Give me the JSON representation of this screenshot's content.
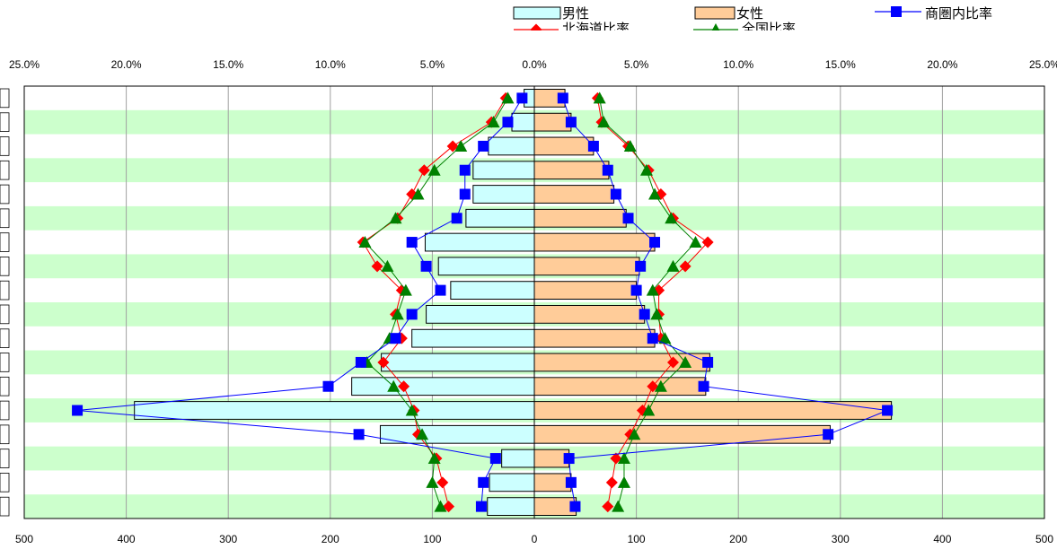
{
  "chart_data": {
    "type": "bar",
    "subtype": "population-pyramid",
    "top_axis": {
      "unit": "percent",
      "range": [
        -25,
        25
      ],
      "tick_labels": [
        "25.0%",
        "20.0%",
        "15.0%",
        "10.0%",
        "5.0%",
        "0.0%",
        "5.0%",
        "10.0%",
        "15.0%",
        "20.0%",
        "25.0%"
      ]
    },
    "bottom_axis": {
      "unit": "persons",
      "range": [
        -500,
        500
      ],
      "tick_labels": [
        "500",
        "400",
        "300",
        "200",
        "100",
        "0",
        "100",
        "200",
        "300",
        "400",
        "500"
      ]
    },
    "grid": true,
    "band_color": "#ccffcc",
    "age_groups": 18,
    "legend": [
      {
        "key": "male",
        "label": "男性",
        "kind": "bar",
        "color": "#ccffff"
      },
      {
        "key": "female",
        "label": "女性",
        "kind": "bar",
        "color": "#ffcc99"
      },
      {
        "key": "area_ratio",
        "label": "商圏内比率",
        "kind": "line",
        "color": "#0000ff",
        "marker": "square"
      },
      {
        "key": "hokkaido_ratio",
        "label": "北海道比率",
        "kind": "line",
        "color": "#ff0000",
        "marker": "diamond"
      },
      {
        "key": "national_ratio",
        "label": "全国比率",
        "kind": "line",
        "color": "#008000",
        "marker": "triangle"
      }
    ],
    "series": [
      {
        "name": "男性",
        "unit": "persons",
        "values": [
          10,
          22,
          45,
          60,
          60,
          67,
          107,
          94,
          82,
          106,
          120,
          150,
          179,
          392,
          151,
          32,
          44,
          46
        ]
      },
      {
        "name": "女性",
        "unit": "persons",
        "values": [
          30,
          36,
          58,
          73,
          78,
          90,
          118,
          103,
          100,
          108,
          118,
          172,
          168,
          350,
          290,
          34,
          36,
          41
        ]
      },
      {
        "name": "商圏内比率",
        "unit": "percent",
        "male": [
          0.6,
          1.3,
          2.5,
          3.4,
          3.4,
          3.8,
          6.0,
          5.3,
          4.6,
          6.0,
          6.8,
          8.5,
          10.1,
          22.4,
          8.6,
          1.9,
          2.5,
          2.6
        ],
        "female": [
          1.4,
          1.8,
          2.9,
          3.6,
          4.0,
          4.6,
          5.9,
          5.2,
          5.0,
          5.4,
          5.8,
          8.5,
          8.3,
          17.3,
          14.4,
          1.7,
          1.8,
          2.0
        ]
      },
      {
        "name": "北海道比率",
        "unit": "percent",
        "male": [
          1.4,
          2.1,
          4.0,
          5.4,
          6.0,
          6.7,
          8.4,
          7.7,
          6.5,
          6.8,
          6.5,
          7.4,
          6.4,
          5.9,
          5.7,
          4.8,
          4.5,
          4.2
        ],
        "female": [
          3.1,
          3.3,
          4.6,
          5.6,
          6.2,
          6.8,
          8.5,
          7.4,
          6.1,
          6.1,
          6.2,
          6.8,
          5.8,
          5.3,
          4.7,
          4.0,
          3.8,
          3.6
        ]
      },
      {
        "name": "全国比率",
        "unit": "percent",
        "male": [
          1.3,
          2.0,
          3.6,
          4.9,
          5.7,
          6.8,
          8.3,
          7.2,
          6.3,
          6.7,
          7.1,
          8.2,
          6.9,
          6.0,
          5.5,
          4.9,
          5.0,
          4.6
        ],
        "female": [
          3.2,
          3.4,
          4.7,
          5.5,
          5.9,
          6.7,
          7.9,
          6.8,
          5.8,
          6.0,
          6.4,
          7.4,
          6.2,
          5.6,
          4.9,
          4.4,
          4.4,
          4.1
        ]
      }
    ]
  }
}
